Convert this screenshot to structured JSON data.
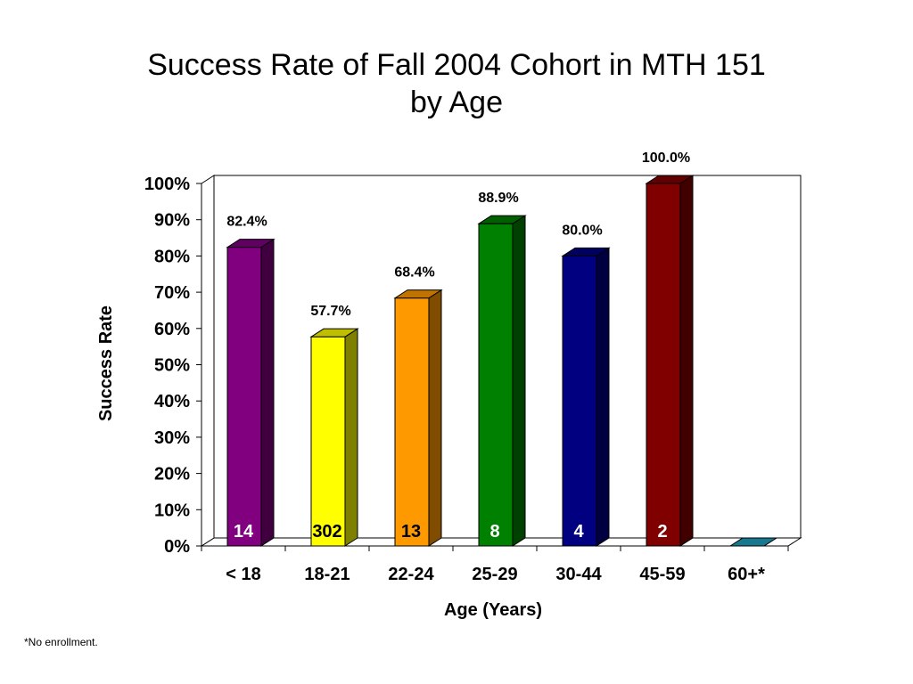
{
  "title_line1": "Success Rate of Fall 2004 Cohort in MTH 151",
  "title_line2": "by Age",
  "footnote": "*No enrollment.",
  "chart_data": {
    "type": "bar",
    "title": "Success Rate of Fall 2004 Cohort in MTH 151 by Age",
    "xlabel": "Age (Years)",
    "ylabel": "Success Rate",
    "ylim": [
      0,
      100
    ],
    "yticks": [
      0,
      10,
      20,
      30,
      40,
      50,
      60,
      70,
      80,
      90,
      100
    ],
    "ytick_suffix": "%",
    "categories": [
      "< 18",
      "18-21",
      "22-24",
      "25-29",
      "30-44",
      "45-59",
      "60+*"
    ],
    "values": [
      82.4,
      57.7,
      68.4,
      88.9,
      80.0,
      100.0,
      0
    ],
    "value_labels": [
      "82.4%",
      "57.7%",
      "68.4%",
      "88.9%",
      "80.0%",
      "100.0%",
      ""
    ],
    "counts": [
      "14",
      "302",
      "13",
      "8",
      "4",
      "2",
      ""
    ],
    "colors": [
      "#800080",
      "#FFFF00",
      "#FF9900",
      "#008000",
      "#000080",
      "#800000",
      "#1FA0C0"
    ],
    "count_label_colors": [
      "#FFFFFF",
      "#000000",
      "#000000",
      "#FFFFFF",
      "#FFFFFF",
      "#FFFFFF",
      "#FFFFFF"
    ],
    "grid": false,
    "legend": "none",
    "style": "3d"
  }
}
